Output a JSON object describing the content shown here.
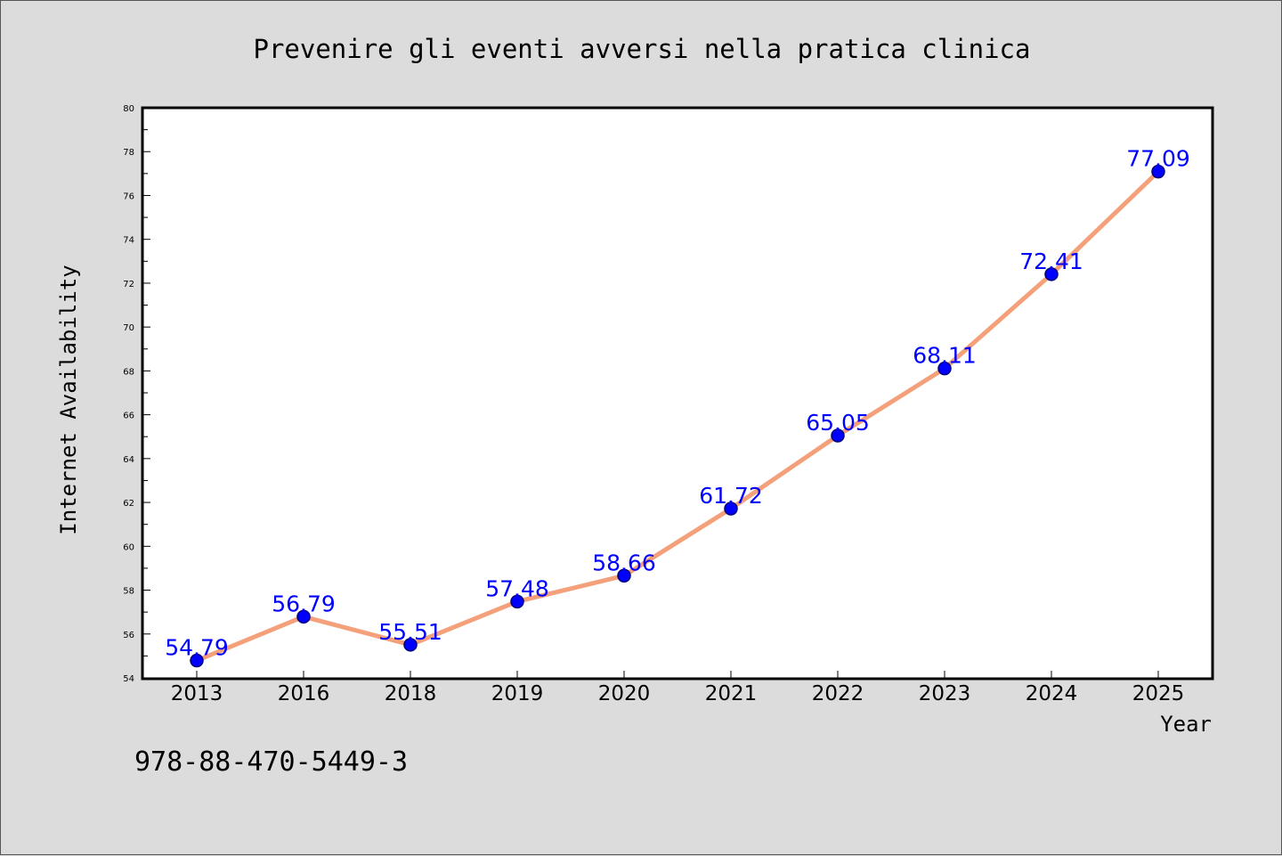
{
  "chart_data": {
    "type": "line",
    "title": "Prevenire gli eventi avversi nella pratica clinica",
    "xlabel": "Year",
    "ylabel": "Internet Availability",
    "categories": [
      "2013",
      "2016",
      "2018",
      "2019",
      "2020",
      "2021",
      "2022",
      "2023",
      "2024",
      "2025"
    ],
    "series": [
      {
        "values": [
          54.79,
          56.79,
          55.51,
          57.48,
          58.66,
          61.72,
          65.05,
          68.11,
          72.41,
          77.09
        ]
      }
    ],
    "data_labels": [
      "54.79",
      "56.79",
      "55.51",
      "57.48",
      "58.66",
      "61.72",
      "65.05",
      "68.11",
      "72.41",
      "77.09"
    ],
    "ylim": [
      54,
      80
    ],
    "yticks": [
      "54",
      "56",
      "58",
      "60",
      "62",
      "64",
      "66",
      "68",
      "70",
      "72",
      "74",
      "76",
      "78",
      "80"
    ],
    "grid": false,
    "legend": "none",
    "colors": {
      "line": "#f4a07a",
      "marker_fill": "#0000ff",
      "marker_edge": "#00007a",
      "data_label": "#0000ff",
      "background": "#dcdcdc",
      "plot_background": "#ffffff"
    }
  },
  "footer": {
    "isbn": "978-88-470-5449-3"
  }
}
